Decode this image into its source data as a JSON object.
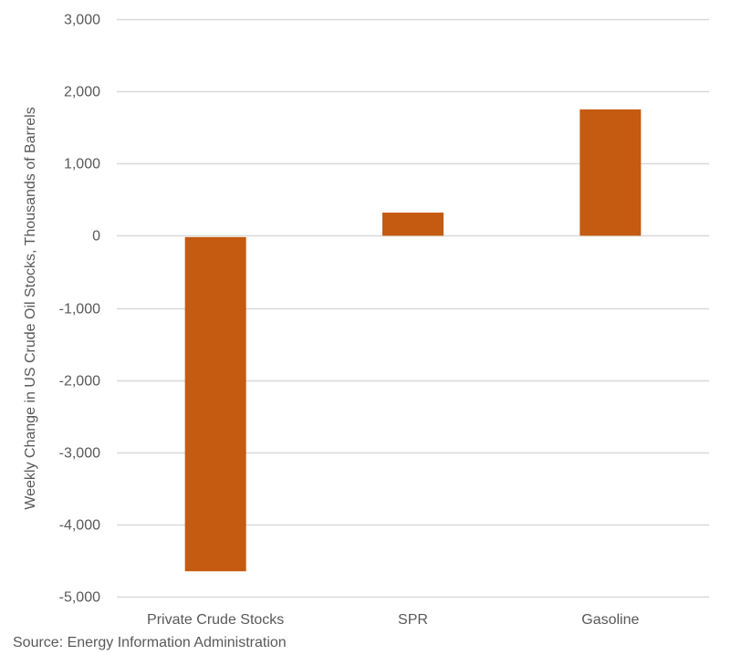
{
  "chart_data": {
    "type": "bar",
    "title": "",
    "xlabel": "",
    "ylabel": "Weekly Change in US Crude Oil Stocks, Thousands of Barrels",
    "categories": [
      "Private Crude Stocks",
      "SPR",
      "Gasoline"
    ],
    "values": [
      -4630,
      320,
      1750
    ],
    "ylim": [
      -5000,
      3000
    ],
    "yticks": [
      3000,
      2000,
      1000,
      0,
      -1000,
      -2000,
      -3000,
      -4000,
      -5000
    ],
    "ytick_labels": [
      "3,000",
      "2,000",
      "1,000",
      "0",
      "-1,000",
      "-2,000",
      "-3,000",
      "-4,000",
      "-5,000"
    ],
    "grid": true,
    "legend": "none",
    "bar_color": "#C55A11",
    "grid_color": "#D9D9D9"
  },
  "source": "Source: Energy Information Administration"
}
